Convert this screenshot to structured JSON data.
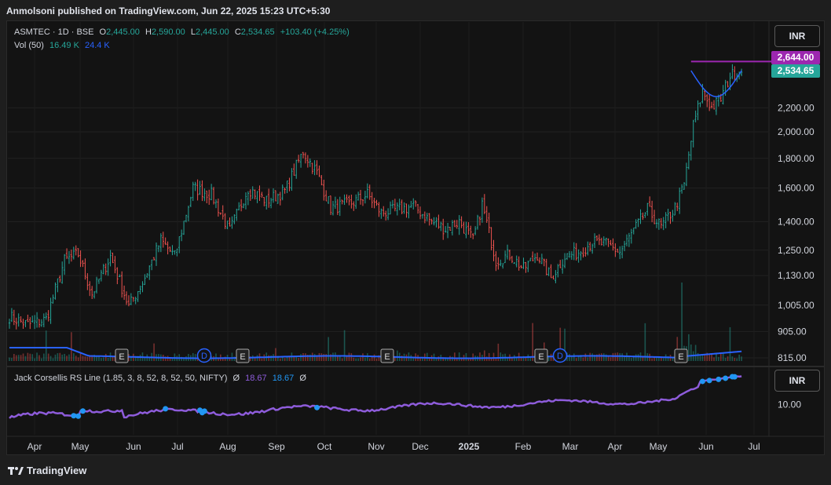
{
  "header": {
    "publisher": "Anmolsoni published on TradingView.com, Jun 22, 2025 15:23 UTC+5:30"
  },
  "legend": {
    "symbol": "ASMTEC · 1D · BSE",
    "open_label": "O",
    "open": "2,445.00",
    "high_label": "H",
    "high": "2,590.00",
    "low_label": "L",
    "low": "2,445.00",
    "close_label": "C",
    "close": "2,534.65",
    "change": "+103.40 (+4.25%)",
    "vol_label": "Vol (50)",
    "vol_value": "16.49 K",
    "vol_ma": "24.4 K"
  },
  "indicator": {
    "name": "Jack Corsellis RS Line (1.85, 3, 8, 52, 8, 52, 50, NIFTY)",
    "sym1": "Ø",
    "value1": "18.67",
    "value2": "18.67",
    "sym2": "Ø"
  },
  "currency": "INR",
  "price_tags": {
    "level": "2,644.00",
    "last": "2,534.65"
  },
  "colors": {
    "up": "#26a69a",
    "down": "#ef5350",
    "level": "#9c27b0",
    "vol_ma": "#2962ff",
    "rs_line": "#8e5cdb",
    "rs_dot": "#2196f3"
  },
  "footer": {
    "brand": "TradingView"
  },
  "chart_data": {
    "type": "candlestick",
    "price_scale": "log",
    "y_ticks": [
      815,
      905,
      1005,
      1130,
      1250,
      1400,
      1600,
      1800,
      2000,
      2200
    ],
    "y_tick_labels": [
      "815.00",
      "905.00",
      "1,005.00",
      "1,130.00",
      "1,250.00",
      "1,400.00",
      "1,600.00",
      "1,800.00",
      "2,000.00",
      "2,200.00"
    ],
    "x_labels": [
      "Apr",
      "May",
      "Jun",
      "Jul",
      "Aug",
      "Sep",
      "Oct",
      "Nov",
      "Dec",
      "2025",
      "Feb",
      "Mar",
      "Apr",
      "May",
      "Jun",
      "Jul"
    ],
    "price_path": [
      {
        "i": 0,
        "p": 960
      },
      {
        "i": 8,
        "p": 930
      },
      {
        "i": 16,
        "p": 950
      },
      {
        "i": 24,
        "p": 1200
      },
      {
        "i": 30,
        "p": 1230
      },
      {
        "i": 36,
        "p": 1050
      },
      {
        "i": 44,
        "p": 1220
      },
      {
        "i": 52,
        "p": 1000
      },
      {
        "i": 58,
        "p": 1100
      },
      {
        "i": 66,
        "p": 1300
      },
      {
        "i": 72,
        "p": 1220
      },
      {
        "i": 80,
        "p": 1600
      },
      {
        "i": 88,
        "p": 1560
      },
      {
        "i": 96,
        "p": 1350
      },
      {
        "i": 104,
        "p": 1600
      },
      {
        "i": 112,
        "p": 1520
      },
      {
        "i": 120,
        "p": 1580
      },
      {
        "i": 128,
        "p": 1850
      },
      {
        "i": 134,
        "p": 1700
      },
      {
        "i": 140,
        "p": 1480
      },
      {
        "i": 148,
        "p": 1500
      },
      {
        "i": 156,
        "p": 1560
      },
      {
        "i": 162,
        "p": 1450
      },
      {
        "i": 170,
        "p": 1470
      },
      {
        "i": 176,
        "p": 1490
      },
      {
        "i": 184,
        "p": 1400
      },
      {
        "i": 190,
        "p": 1360
      },
      {
        "i": 196,
        "p": 1400
      },
      {
        "i": 202,
        "p": 1300
      },
      {
        "i": 206,
        "p": 1500
      },
      {
        "i": 212,
        "p": 1200
      },
      {
        "i": 218,
        "p": 1230
      },
      {
        "i": 224,
        "p": 1160
      },
      {
        "i": 230,
        "p": 1230
      },
      {
        "i": 236,
        "p": 1120
      },
      {
        "i": 242,
        "p": 1220
      },
      {
        "i": 248,
        "p": 1240
      },
      {
        "i": 254,
        "p": 1290
      },
      {
        "i": 260,
        "p": 1280
      },
      {
        "i": 266,
        "p": 1240
      },
      {
        "i": 272,
        "p": 1350
      },
      {
        "i": 278,
        "p": 1470
      },
      {
        "i": 284,
        "p": 1370
      },
      {
        "i": 290,
        "p": 1480
      },
      {
        "i": 294,
        "p": 1620
      },
      {
        "i": 298,
        "p": 2050
      },
      {
        "i": 302,
        "p": 2350
      },
      {
        "i": 306,
        "p": 2200
      },
      {
        "i": 310,
        "p": 2280
      },
      {
        "i": 314,
        "p": 2500
      },
      {
        "i": 318,
        "p": 2534.65
      }
    ],
    "level_line": 2644,
    "volume_ma_level": "flat, rising slightly at end",
    "rs_line": "rising from ~8 to 18.67"
  }
}
